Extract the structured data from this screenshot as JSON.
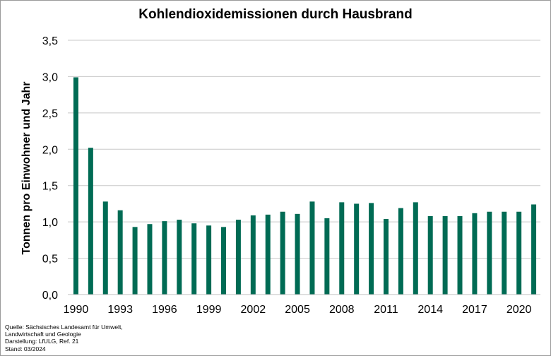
{
  "chart_data": {
    "type": "bar",
    "title": "Kohlendioxidemissionen durch Hausbrand",
    "xlabel": "",
    "ylabel": "Tonnen pro Einwohner und Jahr",
    "x": [
      1990,
      1991,
      1992,
      1993,
      1994,
      1995,
      1996,
      1997,
      1998,
      1999,
      2000,
      2001,
      2002,
      2003,
      2004,
      2005,
      2006,
      2007,
      2008,
      2009,
      2010,
      2011,
      2012,
      2013,
      2014,
      2015,
      2016,
      2017,
      2018,
      2019,
      2020,
      2021
    ],
    "values": [
      2.99,
      2.02,
      1.28,
      1.16,
      0.93,
      0.97,
      1.01,
      1.03,
      0.98,
      0.95,
      0.93,
      1.03,
      1.09,
      1.1,
      1.14,
      1.11,
      1.28,
      1.05,
      1.27,
      1.25,
      1.26,
      1.04,
      1.19,
      1.27,
      1.08,
      1.08,
      1.08,
      1.12,
      1.14,
      1.14,
      1.14,
      1.24
    ],
    "x_tick_labels": [
      "1990",
      "1993",
      "1996",
      "1999",
      "2002",
      "2005",
      "2008",
      "2011",
      "2014",
      "2017",
      "2020"
    ],
    "y_tick_labels": [
      "0,0",
      "0,5",
      "1,0",
      "1,5",
      "2,0",
      "2,5",
      "3,0",
      "3,5"
    ],
    "ylim": [
      0,
      3.5
    ],
    "grid": true,
    "legend": "none",
    "bar_color": "#006B54"
  },
  "source_lines": [
    "Quelle:  Sächsisches Landesamt für Umwelt,",
    "Landwirtschaft und Geologie",
    "Darstellung:  LfULG, Ref. 21",
    "Stand:  03/2024"
  ]
}
